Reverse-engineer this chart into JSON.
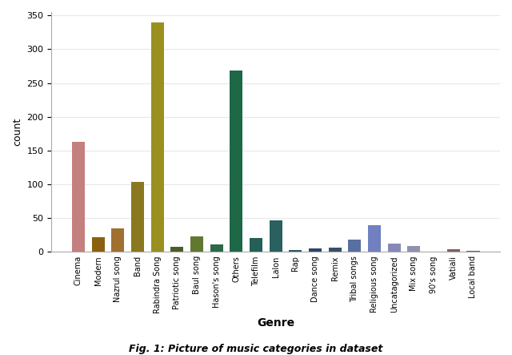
{
  "categories": [
    "Cinema",
    "Modern",
    "Nazrul song",
    "Band",
    "Rabindra Song",
    "Patriotic song",
    "Baul song",
    "Hason's song",
    "Others",
    "Telefilm",
    "Lalon",
    "Rap",
    "Dance song",
    "Remix",
    "Tribal songs",
    "Religious song",
    "Uncatagorized",
    "Mix song",
    "90's song",
    "Vatiali",
    "Local band"
  ],
  "values": [
    163,
    22,
    35,
    104,
    339,
    8,
    23,
    11,
    268,
    21,
    47,
    3,
    5,
    6,
    18,
    40,
    12,
    9,
    1,
    4,
    2
  ],
  "colors": [
    "#c47f7f",
    "#8b6010",
    "#a07030",
    "#8a7820",
    "#999020",
    "#4a5e28",
    "#607830",
    "#2e6848",
    "#1e6848",
    "#246058",
    "#2a6060",
    "#305860",
    "#284868",
    "#385068",
    "#5870a0",
    "#7080c0",
    "#8888b8",
    "#9090b0",
    "#a090a8",
    "#806060",
    "#706050"
  ],
  "xlabel": "Genre",
  "ylabel": "count",
  "ylim": [
    0,
    355
  ],
  "yticks": [
    0,
    50,
    100,
    150,
    200,
    250,
    300,
    350
  ],
  "caption": "Fig. 1: Picture of music categories in dataset",
  "bg_color": "#ffffff",
  "grid_color": "#e8e8e8",
  "bar_width": 0.65
}
